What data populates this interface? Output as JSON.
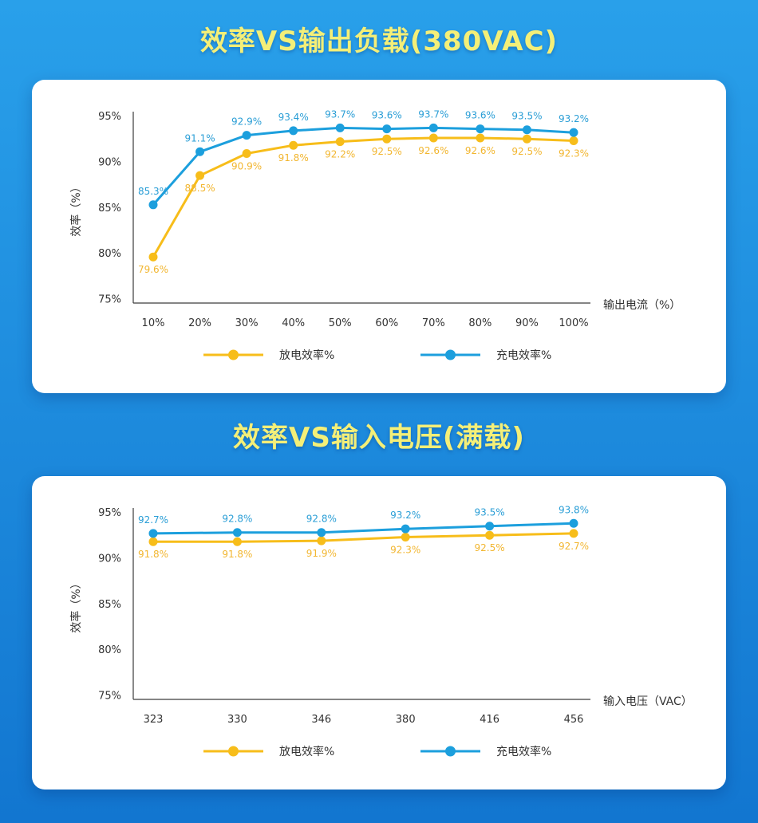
{
  "theme": {
    "background_top": "#29a0ea",
    "background_bottom": "#1276d0",
    "title_color": "#f4ef78",
    "card_color": "#ffffff",
    "text_color": "#333333",
    "axis_color": "#3c3c3c"
  },
  "chart_data": [
    {
      "type": "line",
      "title": "效率VS输出负载(380VAC)",
      "xlabel": "输出电流（%）",
      "ylabel": "效率（%）",
      "categories": [
        "10%",
        "20%",
        "30%",
        "40%",
        "50%",
        "60%",
        "70%",
        "80%",
        "90%",
        "100%"
      ],
      "ylim": [
        75,
        95
      ],
      "y_ticks": [
        95,
        90,
        85,
        80,
        75
      ],
      "y_tick_labels": [
        "95%",
        "90%",
        "85%",
        "80%",
        "75%"
      ],
      "grid": false,
      "legend_position": "bottom",
      "data_label_suffix": "%",
      "series": [
        {
          "name": "放电效率%",
          "color": "#f7bd1a",
          "label_color": "#f2b630",
          "label_position": "below",
          "values": [
            79.6,
            88.5,
            90.9,
            91.8,
            92.2,
            92.5,
            92.6,
            92.6,
            92.5,
            92.3
          ]
        },
        {
          "name": "充电效率%",
          "color": "#1c9fdd",
          "label_color": "#2a9ed6",
          "label_position": "above",
          "values": [
            85.3,
            91.1,
            92.9,
            93.4,
            93.7,
            93.6,
            93.7,
            93.6,
            93.5,
            93.2
          ]
        }
      ]
    },
    {
      "type": "line",
      "title": "效率VS输入电压(满载)",
      "xlabel": "输入电压（VAC）",
      "ylabel": "效率（%）",
      "categories": [
        "323",
        "330",
        "346",
        "380",
        "416",
        "456"
      ],
      "ylim": [
        75,
        95
      ],
      "y_ticks": [
        95,
        90,
        85,
        80,
        75
      ],
      "y_tick_labels": [
        "95%",
        "90%",
        "85%",
        "80%",
        "75%"
      ],
      "grid": false,
      "legend_position": "bottom",
      "data_label_suffix": "%",
      "series": [
        {
          "name": "放电效率%",
          "color": "#f7bd1a",
          "label_color": "#f2b630",
          "label_position": "below",
          "values": [
            91.8,
            91.8,
            91.9,
            92.3,
            92.5,
            92.7
          ]
        },
        {
          "name": "充电效率%",
          "color": "#1c9fdd",
          "label_color": "#2a9ed6",
          "label_position": "above",
          "values": [
            92.7,
            92.8,
            92.8,
            93.2,
            93.5,
            93.8
          ]
        }
      ]
    }
  ]
}
